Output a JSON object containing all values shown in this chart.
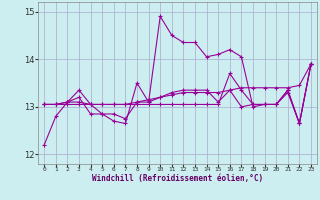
{
  "xlabel": "Windchill (Refroidissement éolien,°C)",
  "bg_color": "#cceef0",
  "grid_color": "#aaaacc",
  "line_color": "#990099",
  "ylim": [
    11.8,
    15.2
  ],
  "xlim": [
    -0.5,
    23.5
  ],
  "yticks": [
    12,
    13,
    14,
    15
  ],
  "xticks": [
    0,
    1,
    2,
    3,
    4,
    5,
    6,
    7,
    8,
    9,
    10,
    11,
    12,
    13,
    14,
    15,
    16,
    17,
    18,
    19,
    20,
    21,
    22,
    23
  ],
  "series": [
    [
      12.2,
      12.8,
      13.1,
      13.35,
      13.05,
      12.85,
      12.7,
      12.65,
      13.5,
      13.1,
      14.9,
      14.5,
      14.35,
      14.35,
      14.05,
      14.1,
      14.2,
      14.05,
      13.0,
      13.05,
      13.05,
      13.3,
      12.65,
      13.9
    ],
    [
      13.05,
      13.05,
      13.1,
      13.2,
      12.85,
      12.85,
      12.85,
      12.75,
      13.1,
      13.1,
      13.2,
      13.3,
      13.35,
      13.35,
      13.35,
      13.1,
      13.35,
      13.0,
      13.05,
      13.05,
      13.05,
      13.35,
      12.65,
      13.9
    ],
    [
      13.05,
      13.05,
      13.1,
      13.1,
      13.05,
      13.05,
      13.05,
      13.05,
      13.1,
      13.15,
      13.2,
      13.25,
      13.3,
      13.3,
      13.3,
      13.3,
      13.35,
      13.4,
      13.4,
      13.4,
      13.4,
      13.4,
      13.45,
      13.9
    ],
    [
      13.05,
      13.05,
      13.05,
      13.05,
      13.05,
      13.05,
      13.05,
      13.05,
      13.05,
      13.05,
      13.05,
      13.05,
      13.05,
      13.05,
      13.05,
      13.05,
      13.7,
      13.35,
      13.05,
      13.05,
      13.05,
      13.35,
      12.65,
      13.9
    ]
  ]
}
